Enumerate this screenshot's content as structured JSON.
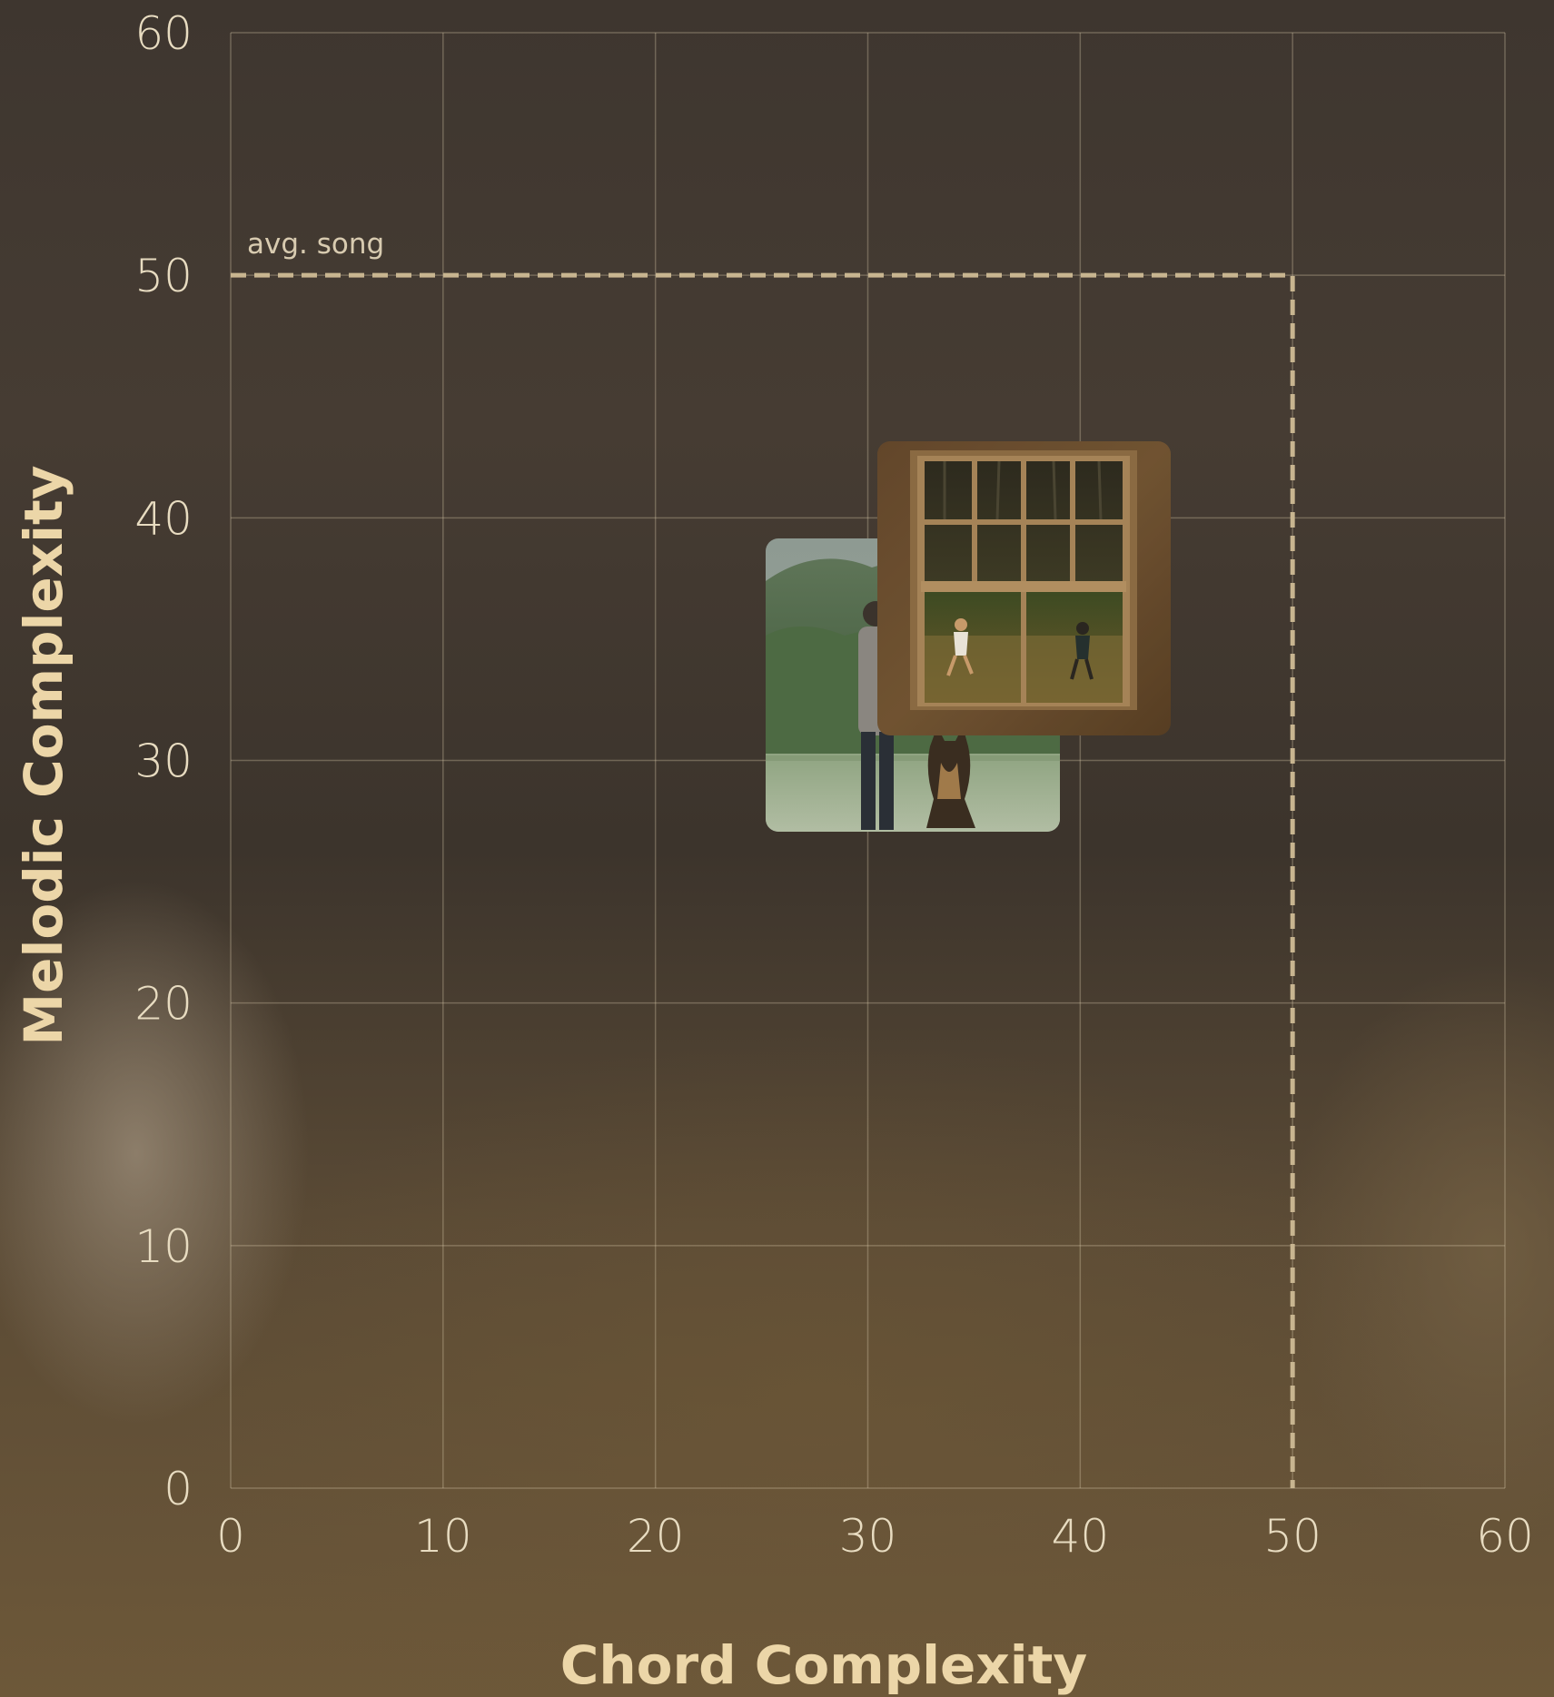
{
  "chart_data": {
    "type": "scatter",
    "xlabel": "Chord Complexity",
    "ylabel": "Melodic Complexity",
    "xlim": [
      0,
      60
    ],
    "ylim": [
      0,
      60
    ],
    "xticks": [
      "0",
      "10",
      "20",
      "30",
      "40",
      "50",
      "60"
    ],
    "yticks": [
      "0",
      "10",
      "20",
      "30",
      "40",
      "50",
      "60"
    ],
    "grid": true,
    "reference": {
      "label": "avg. song",
      "x": 50,
      "y": 50,
      "style": "dashed"
    },
    "points": [
      {
        "name": "album-cover-person-dog-field",
        "x": 32,
        "y": 33
      },
      {
        "name": "album-cover-window-children",
        "x": 37,
        "y": 37
      }
    ],
    "colors": {
      "axis_text": "#e8dcc1",
      "axis_title": "#ecd6a8",
      "reference_line": "#c8b590"
    }
  }
}
